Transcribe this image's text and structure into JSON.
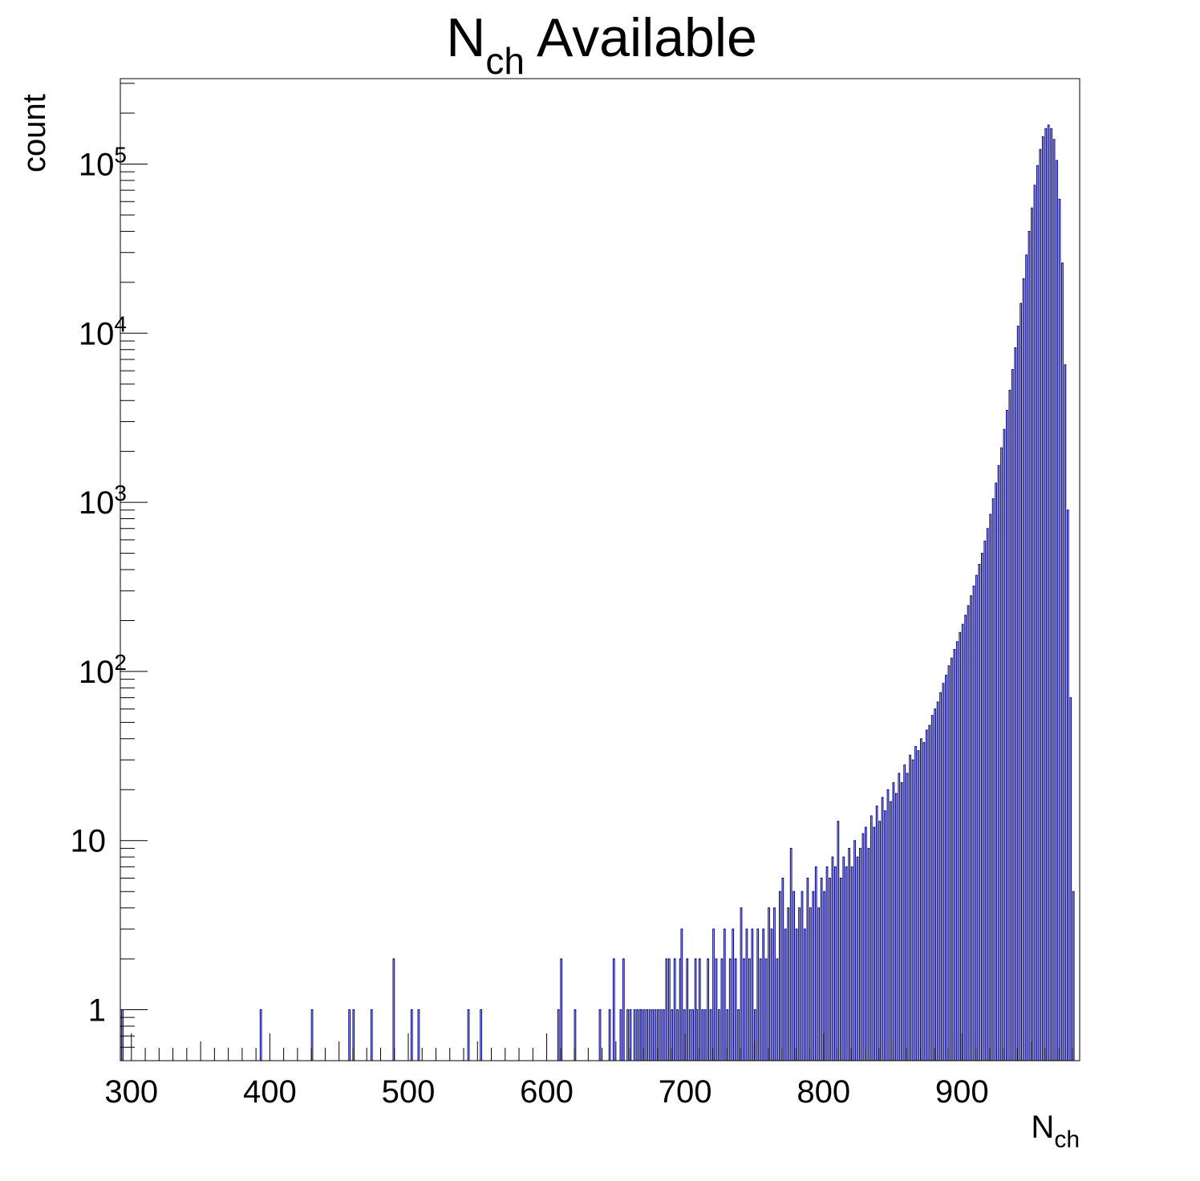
{
  "chart_data": {
    "type": "bar",
    "title": {
      "main": "N",
      "sub": "ch",
      "rest": " Available"
    },
    "xlabel": {
      "main": "N",
      "sub": "ch"
    },
    "ylabel": "count",
    "y_scale": "log",
    "xlim": [
      292,
      985
    ],
    "ylim": [
      0.5,
      320000
    ],
    "grid": false,
    "fill_color": "#ccccff",
    "line_color": "#000080",
    "x_ticks": [
      300,
      400,
      500,
      600,
      700,
      800,
      900
    ],
    "y_ticks": [
      {
        "value": 1,
        "base": "1",
        "exp": ""
      },
      {
        "value": 10,
        "base": "10",
        "exp": ""
      },
      {
        "value": 100,
        "base": "10",
        "exp": "2"
      },
      {
        "value": 1000,
        "base": "10",
        "exp": "3"
      },
      {
        "value": 10000,
        "base": "10",
        "exp": "4"
      },
      {
        "value": 100000,
        "base": "10",
        "exp": "5"
      }
    ],
    "bin_width": 1,
    "bins": [
      [
        292,
        1
      ],
      [
        293,
        1
      ],
      [
        393,
        1
      ],
      [
        430,
        1
      ],
      [
        457,
        1
      ],
      [
        460,
        1
      ],
      [
        473,
        1
      ],
      [
        489,
        2
      ],
      [
        502,
        1
      ],
      [
        507,
        1
      ],
      [
        543,
        1
      ],
      [
        552,
        1
      ],
      [
        608,
        1
      ],
      [
        610,
        2
      ],
      [
        620,
        1
      ],
      [
        638,
        1
      ],
      [
        645,
        1
      ],
      [
        648,
        2
      ],
      [
        653,
        1
      ],
      [
        655,
        2
      ],
      [
        658,
        1
      ],
      [
        660,
        1
      ],
      [
        663,
        1
      ],
      [
        665,
        1
      ],
      [
        667,
        1
      ],
      [
        668,
        1
      ],
      [
        670,
        1
      ],
      [
        672,
        1
      ],
      [
        674,
        1
      ],
      [
        676,
        1
      ],
      [
        678,
        1
      ],
      [
        680,
        1
      ],
      [
        682,
        1
      ],
      [
        684,
        1
      ],
      [
        686,
        2
      ],
      [
        688,
        2
      ],
      [
        690,
        1
      ],
      [
        692,
        2
      ],
      [
        694,
        1
      ],
      [
        696,
        2
      ],
      [
        697,
        3
      ],
      [
        699,
        1
      ],
      [
        701,
        2
      ],
      [
        703,
        1
      ],
      [
        705,
        1
      ],
      [
        707,
        2
      ],
      [
        708,
        1
      ],
      [
        710,
        2
      ],
      [
        712,
        1
      ],
      [
        714,
        1
      ],
      [
        716,
        2
      ],
      [
        718,
        1
      ],
      [
        720,
        3
      ],
      [
        722,
        2
      ],
      [
        724,
        1
      ],
      [
        726,
        2
      ],
      [
        728,
        3
      ],
      [
        730,
        1
      ],
      [
        732,
        2
      ],
      [
        734,
        3
      ],
      [
        736,
        2
      ],
      [
        738,
        1
      ],
      [
        740,
        4
      ],
      [
        742,
        2
      ],
      [
        744,
        3
      ],
      [
        746,
        2
      ],
      [
        748,
        3
      ],
      [
        750,
        1
      ],
      [
        752,
        3
      ],
      [
        754,
        2
      ],
      [
        756,
        3
      ],
      [
        758,
        2
      ],
      [
        760,
        4
      ],
      [
        762,
        3
      ],
      [
        764,
        4
      ],
      [
        766,
        2
      ],
      [
        768,
        5
      ],
      [
        770,
        6
      ],
      [
        772,
        3
      ],
      [
        774,
        4
      ],
      [
        776,
        9
      ],
      [
        778,
        5
      ],
      [
        780,
        3
      ],
      [
        782,
        4
      ],
      [
        784,
        5
      ],
      [
        786,
        3
      ],
      [
        788,
        6
      ],
      [
        790,
        4
      ],
      [
        792,
        5
      ],
      [
        794,
        7
      ],
      [
        796,
        4
      ],
      [
        798,
        6
      ],
      [
        800,
        5
      ],
      [
        802,
        7
      ],
      [
        804,
        6
      ],
      [
        806,
        8
      ],
      [
        808,
        7
      ],
      [
        810,
        13
      ],
      [
        812,
        6
      ],
      [
        814,
        8
      ],
      [
        816,
        7
      ],
      [
        818,
        9
      ],
      [
        820,
        7
      ],
      [
        822,
        10
      ],
      [
        824,
        8
      ],
      [
        826,
        9
      ],
      [
        828,
        11
      ],
      [
        830,
        12
      ],
      [
        832,
        9
      ],
      [
        834,
        14
      ],
      [
        836,
        12
      ],
      [
        838,
        16
      ],
      [
        840,
        13
      ],
      [
        842,
        18
      ],
      [
        844,
        15
      ],
      [
        846,
        20
      ],
      [
        848,
        17
      ],
      [
        850,
        22
      ],
      [
        852,
        19
      ],
      [
        854,
        25
      ],
      [
        856,
        22
      ],
      [
        858,
        28
      ],
      [
        860,
        25
      ],
      [
        862,
        32
      ],
      [
        864,
        30
      ],
      [
        866,
        36
      ],
      [
        868,
        34
      ],
      [
        870,
        40
      ],
      [
        872,
        38
      ],
      [
        874,
        45
      ],
      [
        876,
        48
      ],
      [
        878,
        55
      ],
      [
        880,
        60
      ],
      [
        882,
        66
      ],
      [
        884,
        75
      ],
      [
        886,
        85
      ],
      [
        888,
        95
      ],
      [
        890,
        108
      ],
      [
        892,
        120
      ],
      [
        894,
        135
      ],
      [
        896,
        150
      ],
      [
        898,
        170
      ],
      [
        900,
        190
      ],
      [
        902,
        215
      ],
      [
        904,
        245
      ],
      [
        906,
        280
      ],
      [
        908,
        320
      ],
      [
        910,
        370
      ],
      [
        912,
        430
      ],
      [
        914,
        500
      ],
      [
        916,
        590
      ],
      [
        918,
        700
      ],
      [
        920,
        850
      ],
      [
        922,
        1050
      ],
      [
        924,
        1300
      ],
      [
        926,
        1650
      ],
      [
        928,
        2100
      ],
      [
        930,
        2700
      ],
      [
        932,
        3500
      ],
      [
        934,
        4600
      ],
      [
        936,
        6100
      ],
      [
        938,
        8200
      ],
      [
        940,
        11000
      ],
      [
        942,
        15000
      ],
      [
        944,
        21000
      ],
      [
        946,
        29000
      ],
      [
        948,
        40000
      ],
      [
        950,
        55000
      ],
      [
        952,
        75000
      ],
      [
        954,
        98000
      ],
      [
        956,
        122000
      ],
      [
        958,
        145000
      ],
      [
        960,
        162000
      ],
      [
        962,
        170000
      ],
      [
        964,
        162000
      ],
      [
        966,
        140000
      ],
      [
        968,
        105000
      ],
      [
        970,
        62000
      ],
      [
        972,
        26000
      ],
      [
        974,
        6500
      ],
      [
        976,
        900
      ],
      [
        978,
        70
      ],
      [
        980,
        5
      ]
    ]
  }
}
